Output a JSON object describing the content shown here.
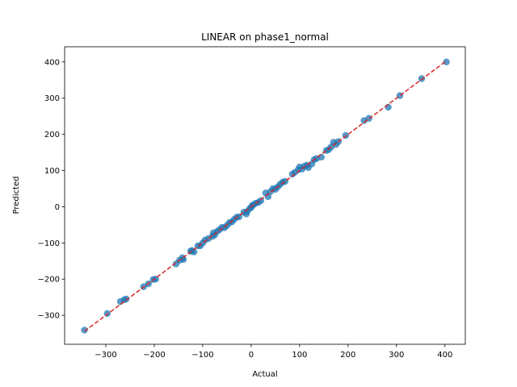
{
  "chart_data": {
    "type": "scatter",
    "title": "LINEAR on phase1_normal",
    "xlabel": "Actual",
    "ylabel": "Predicted",
    "xlim": [
      -385,
      442
    ],
    "ylim": [
      -380,
      442
    ],
    "xticks": [
      -300,
      -200,
      -100,
      0,
      100,
      200,
      300,
      400
    ],
    "yticks": [
      -300,
      -200,
      -100,
      0,
      100,
      200,
      300,
      400
    ],
    "grid": false,
    "point_color": "#1f77b4",
    "reference_line": {
      "from": [
        -344,
        -344
      ],
      "to": [
        403,
        403
      ],
      "color": "#d62728",
      "style": "dashed"
    },
    "series": [
      {
        "points": [
          [
            -344,
            -341
          ],
          [
            -297,
            -295
          ],
          [
            -270,
            -262
          ],
          [
            -262,
            -257
          ],
          [
            -258,
            -255
          ],
          [
            -222,
            -221
          ],
          [
            -212,
            -213
          ],
          [
            -202,
            -201
          ],
          [
            -197,
            -200
          ],
          [
            -155,
            -158
          ],
          [
            -148,
            -148
          ],
          [
            -142,
            -141
          ],
          [
            -140,
            -146
          ],
          [
            -125,
            -123
          ],
          [
            -122,
            -121
          ],
          [
            -118,
            -125
          ],
          [
            -110,
            -108
          ],
          [
            -105,
            -108
          ],
          [
            -100,
            -100
          ],
          [
            -95,
            -92
          ],
          [
            -88,
            -88
          ],
          [
            -80,
            -82
          ],
          [
            -78,
            -72
          ],
          [
            -75,
            -78
          ],
          [
            -70,
            -68
          ],
          [
            -65,
            -63
          ],
          [
            -60,
            -57
          ],
          [
            -55,
            -58
          ],
          [
            -50,
            -52
          ],
          [
            -45,
            -44
          ],
          [
            -40,
            -42
          ],
          [
            -35,
            -35
          ],
          [
            -30,
            -29
          ],
          [
            -25,
            -28
          ],
          [
            -15,
            -15
          ],
          [
            -10,
            -20
          ],
          [
            -8,
            -13
          ],
          [
            -3,
            -5
          ],
          [
            0,
            -2
          ],
          [
            2,
            3
          ],
          [
            5,
            6
          ],
          [
            10,
            10
          ],
          [
            15,
            12
          ],
          [
            20,
            17
          ],
          [
            30,
            38
          ],
          [
            35,
            28
          ],
          [
            40,
            42
          ],
          [
            45,
            50
          ],
          [
            50,
            48
          ],
          [
            55,
            55
          ],
          [
            60,
            62
          ],
          [
            65,
            68
          ],
          [
            70,
            70
          ],
          [
            85,
            90
          ],
          [
            90,
            95
          ],
          [
            97,
            102
          ],
          [
            100,
            110
          ],
          [
            105,
            104
          ],
          [
            110,
            112
          ],
          [
            115,
            115
          ],
          [
            118,
            108
          ],
          [
            125,
            118
          ],
          [
            130,
            130
          ],
          [
            135,
            133
          ],
          [
            145,
            137
          ],
          [
            155,
            155
          ],
          [
            160,
            158
          ],
          [
            165,
            165
          ],
          [
            170,
            178
          ],
          [
            175,
            172
          ],
          [
            180,
            180
          ],
          [
            195,
            197
          ],
          [
            233,
            238
          ],
          [
            243,
            244
          ],
          [
            283,
            275
          ],
          [
            307,
            307
          ],
          [
            352,
            354
          ],
          [
            403,
            400
          ]
        ]
      }
    ]
  }
}
